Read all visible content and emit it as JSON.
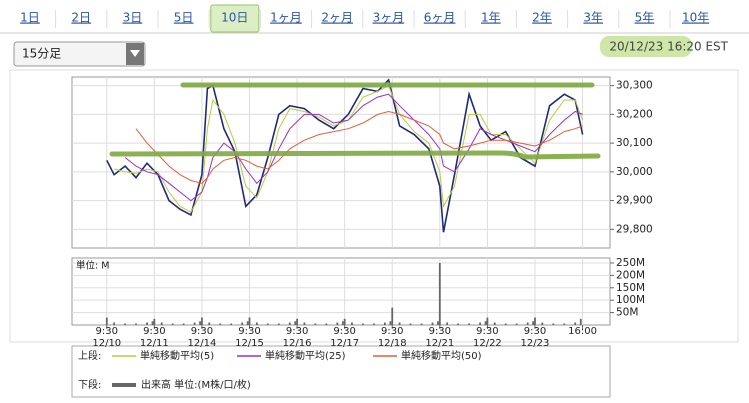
{
  "tabs": [
    "1日",
    "2日",
    "3日",
    "5日",
    "10日",
    "1ヶ月",
    "2ヶ月",
    "3ヶ月",
    "6ヶ月",
    "1年",
    "2年",
    "3年",
    "5年",
    "10年"
  ],
  "selected_tab_index": 4,
  "interval_select": "15分足",
  "timestamp": "20/12/23 16:20 EST",
  "legend": {
    "upper_label": "上段:",
    "lower_label": "下段:"
  },
  "chart_data": [
    {
      "type": "line",
      "x": [
        0,
        4,
        10,
        16,
        22,
        28,
        34,
        40,
        46,
        52,
        55,
        58,
        64,
        70,
        76,
        82,
        88,
        94,
        100,
        108,
        116,
        124,
        132,
        140,
        148,
        154,
        160,
        168,
        176,
        182,
        184,
        190,
        198,
        204,
        210,
        218,
        226,
        234,
        242,
        250,
        256,
        260
      ],
      "series": [
        {
          "color": "#1f2a7a",
          "values": [
            30040,
            29990,
            30020,
            29980,
            30030,
            29990,
            29900,
            29870,
            29850,
            29990,
            30290,
            30300,
            30150,
            30070,
            29880,
            29920,
            30050,
            30200,
            30230,
            30220,
            30180,
            30150,
            30200,
            30290,
            30280,
            30320,
            30160,
            30130,
            30080,
            29950,
            29790,
            29990,
            30270,
            30160,
            30110,
            30140,
            30050,
            30020,
            30230,
            30270,
            30250,
            30130
          ]
        },
        {
          "name": "単純移動平均(5)",
          "color": "#b8cc3c",
          "values": [
            null,
            30010,
            30000,
            29995,
            30010,
            30000,
            29930,
            29880,
            29860,
            29930,
            30150,
            30250,
            30200,
            30100,
            29950,
            29910,
            30000,
            30150,
            30220,
            30210,
            30190,
            30160,
            30180,
            30260,
            30280,
            30300,
            30200,
            30140,
            30100,
            30000,
            29880,
            29950,
            30200,
            30200,
            30130,
            30130,
            30080,
            30030,
            30180,
            30250,
            30250,
            30180
          ]
        },
        {
          "name": "単純移動平均(25)",
          "color": "#9b30c8",
          "values": [
            null,
            null,
            30050,
            30020,
            30000,
            29990,
            29960,
            29930,
            29900,
            29930,
            29980,
            30050,
            30100,
            30070,
            30010,
            29960,
            30000,
            30080,
            30150,
            30200,
            30200,
            30170,
            30180,
            30230,
            30260,
            30270,
            30230,
            30180,
            30130,
            30080,
            30020,
            30000,
            30080,
            30150,
            30130,
            30110,
            30090,
            30070,
            30130,
            30180,
            30210,
            30200
          ]
        },
        {
          "name": "単純移動平均(50)",
          "color": "#e0603a",
          "values": [
            null,
            null,
            null,
            30150,
            30100,
            30060,
            30020,
            29990,
            29970,
            29960,
            29980,
            30010,
            30040,
            30050,
            30040,
            30020,
            30010,
            30040,
            30080,
            30110,
            30130,
            30140,
            30150,
            30170,
            30200,
            30210,
            30200,
            30180,
            30160,
            30130,
            30100,
            30080,
            30090,
            30100,
            30110,
            30110,
            30100,
            30090,
            30110,
            30140,
            30150,
            30160
          ]
        }
      ],
      "xlim": [
        -19,
        275
      ],
      "xticks": [
        0,
        26,
        52,
        78,
        104,
        130,
        156,
        182,
        208,
        234,
        260
      ],
      "ylim": [
        29735,
        30330
      ],
      "yticks": [
        {
          "value": 29800,
          "label": "29,800"
        },
        {
          "value": 29900,
          "label": "29,900"
        },
        {
          "value": 30000,
          "label": "30,000"
        },
        {
          "value": 30100,
          "label": "30,100"
        },
        {
          "value": 30200,
          "label": "30,200"
        },
        {
          "value": 30300,
          "label": "30,300"
        }
      ],
      "grid": true
    },
    {
      "type": "bar",
      "unit_label": "単位: M",
      "legend_label": "出来高 単位:(M株/口/枚)",
      "color": "#666666",
      "x": [
        0,
        4,
        10,
        16,
        22,
        25,
        26,
        30,
        36,
        42,
        48,
        51,
        52,
        56,
        62,
        68,
        74,
        77,
        78,
        82,
        88,
        94,
        100,
        103,
        104,
        108,
        114,
        120,
        126,
        129,
        130,
        134,
        140,
        146,
        152,
        155,
        156,
        160,
        166,
        172,
        178,
        181,
        182,
        186,
        192,
        198,
        204,
        207,
        208,
        212,
        218,
        224,
        230,
        233,
        234,
        238,
        244,
        250,
        256,
        259
      ],
      "values": [
        30,
        10,
        6,
        6,
        10,
        15,
        25,
        10,
        6,
        6,
        10,
        15,
        30,
        10,
        6,
        6,
        10,
        15,
        30,
        10,
        6,
        6,
        10,
        15,
        25,
        10,
        6,
        6,
        10,
        15,
        25,
        10,
        6,
        6,
        10,
        15,
        70,
        10,
        6,
        6,
        10,
        15,
        250,
        10,
        6,
        6,
        10,
        15,
        30,
        10,
        6,
        6,
        10,
        15,
        30,
        10,
        6,
        6,
        10,
        25
      ],
      "xlim": [
        -19,
        275
      ],
      "xticks": [
        {
          "value": 0,
          "label": "9:30",
          "date": "12/10"
        },
        {
          "value": 26,
          "label": "9:30",
          "date": "12/11"
        },
        {
          "value": 52,
          "label": "9:30",
          "date": "12/14"
        },
        {
          "value": 78,
          "label": "9:30",
          "date": "12/15"
        },
        {
          "value": 104,
          "label": "9:30",
          "date": "12/16"
        },
        {
          "value": 130,
          "label": "9:30",
          "date": "12/17"
        },
        {
          "value": 156,
          "label": "9:30",
          "date": "12/18"
        },
        {
          "value": 182,
          "label": "9:30",
          "date": "12/21"
        },
        {
          "value": 208,
          "label": "9:30",
          "date": "12/22"
        },
        {
          "value": 234,
          "label": "9:30",
          "date": "12/23"
        },
        {
          "value": 260,
          "label": "16:00"
        }
      ],
      "ylim": [
        0,
        270
      ],
      "yticks": [
        {
          "value": 50,
          "label": "50M"
        },
        {
          "value": 100,
          "label": "100M"
        },
        {
          "value": 150,
          "label": "150M"
        },
        {
          "value": 200,
          "label": "200M"
        },
        {
          "value": 250,
          "label": "250M"
        }
      ],
      "grid": true
    }
  ]
}
